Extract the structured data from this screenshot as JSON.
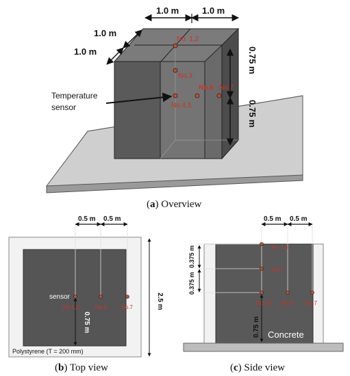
{
  "overview": {
    "dim_top_left": "1.0 m",
    "dim_top_right": "1.0 m",
    "dim_side_upper": "1.0 m",
    "dim_side_lower": "1.0 m",
    "dim_height_upper": "0.75 m",
    "dim_height_lower": "0.75 m",
    "sensor_label_line1": "Temperature",
    "sensor_label_line2": "sensor",
    "points": [
      "No. 1,2",
      "No.3",
      "No.4,5",
      "No.6",
      "No.7"
    ],
    "caption_bold": "a",
    "caption_rest": "Overview"
  },
  "top_view": {
    "dim_left": "0.5 m",
    "dim_right": "0.5 m",
    "dim_total": "2.5 m",
    "dim_vertical": "0.75 m",
    "sensor_label": "sensor",
    "points": [
      "No.1,2",
      "No.6",
      "No.7"
    ],
    "polystyrene_label": "Polystyrene (T = 200 mm)",
    "caption_bold": "b",
    "caption_rest": "Top view"
  },
  "side_view": {
    "dim_left": "0.5 m",
    "dim_right": "0.5 m",
    "dim_upper": "0.375 m",
    "dim_middle": "0.375 m",
    "dim_bottom": "0.75 m",
    "points": [
      "No. 1,2",
      "No.3",
      "No.4,5",
      "No.6",
      "No.7"
    ],
    "concrete_label": "Concrete",
    "caption_bold": "c",
    "caption_rest": "Side view"
  },
  "colors": {
    "block_front": "#6f6f6f",
    "block_side": "#4f4f4f",
    "block_top": "#7a7a7a",
    "slab": "#cfcfcf",
    "sensor_point": "#c0502a",
    "label_red": "#d0321e"
  }
}
